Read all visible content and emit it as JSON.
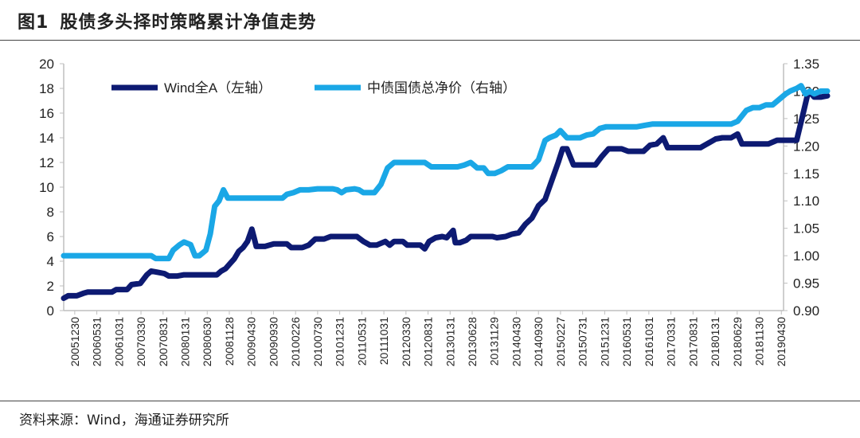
{
  "header": {
    "fig_label": "图1",
    "title": "股债多头择时策略累计净值走势"
  },
  "footer": {
    "source": "资料来源：Wind，海通证券研究所"
  },
  "colors": {
    "series_left": "#0d1a72",
    "series_right": "#1aa7e6",
    "axis": "#bfbfbf",
    "text": "#222222"
  },
  "chart_data": {
    "type": "line",
    "title": "",
    "xlabel": "",
    "x_tick_labels": [
      "20051230",
      "20060531",
      "20061031",
      "20070330",
      "20070831",
      "20080131",
      "20080630",
      "20081128",
      "20090430",
      "20090930",
      "20100226",
      "20100730",
      "20101231",
      "20110531",
      "20111031",
      "20120330",
      "20120831",
      "20130131",
      "20130628",
      "20131129",
      "20140430",
      "20140930",
      "20150227",
      "20150731",
      "20151231",
      "20160531",
      "20161031",
      "20170331",
      "20170831",
      "20180131",
      "20180629",
      "20181130",
      "20190430"
    ],
    "left_axis": {
      "range": [
        0,
        20
      ],
      "ticks": [
        0,
        2,
        4,
        6,
        8,
        10,
        12,
        14,
        16,
        18,
        20
      ]
    },
    "right_axis": {
      "range": [
        0.9,
        1.35
      ],
      "ticks": [
        "0.90",
        "0.95",
        "1.00",
        "1.05",
        "1.10",
        "1.15",
        "1.20",
        "1.25",
        "1.30",
        "1.35"
      ]
    },
    "legend": {
      "placement": "top-left"
    },
    "grid": false,
    "series": [
      {
        "name": "Wind全A（左轴）",
        "axis": "left",
        "points": [
          [
            0,
            1.0
          ],
          [
            0.2,
            1.2
          ],
          [
            0.6,
            1.2
          ],
          [
            0.9,
            1.4
          ],
          [
            1.1,
            1.5
          ],
          [
            1.5,
            1.5
          ],
          [
            2.2,
            1.5
          ],
          [
            2.4,
            1.7
          ],
          [
            2.9,
            1.7
          ],
          [
            3.1,
            2.1
          ],
          [
            3.5,
            2.2
          ],
          [
            3.8,
            2.9
          ],
          [
            4.0,
            3.2
          ],
          [
            4.3,
            3.1
          ],
          [
            4.6,
            3.0
          ],
          [
            4.8,
            2.8
          ],
          [
            5.2,
            2.8
          ],
          [
            5.5,
            2.9
          ],
          [
            6.0,
            2.9
          ],
          [
            6.4,
            2.9
          ],
          [
            6.8,
            2.9
          ],
          [
            7.0,
            2.9
          ],
          [
            7.2,
            3.2
          ],
          [
            7.4,
            3.4
          ],
          [
            7.6,
            3.8
          ],
          [
            7.8,
            4.2
          ],
          [
            8.0,
            4.8
          ],
          [
            8.2,
            5.1
          ],
          [
            8.4,
            5.6
          ],
          [
            8.6,
            6.6
          ],
          [
            8.7,
            5.9
          ],
          [
            8.8,
            5.2
          ],
          [
            9.2,
            5.2
          ],
          [
            9.6,
            5.4
          ],
          [
            10.2,
            5.4
          ],
          [
            10.4,
            5.1
          ],
          [
            10.9,
            5.1
          ],
          [
            11.2,
            5.3
          ],
          [
            11.5,
            5.8
          ],
          [
            11.9,
            5.8
          ],
          [
            12.2,
            6.0
          ],
          [
            12.6,
            6.0
          ],
          [
            13.4,
            6.0
          ],
          [
            13.7,
            5.6
          ],
          [
            14.0,
            5.3
          ],
          [
            14.3,
            5.3
          ],
          [
            14.7,
            5.6
          ],
          [
            14.9,
            5.3
          ],
          [
            15.1,
            5.6
          ],
          [
            15.5,
            5.6
          ],
          [
            15.7,
            5.3
          ],
          [
            16.3,
            5.3
          ],
          [
            16.5,
            5.0
          ],
          [
            16.7,
            5.6
          ],
          [
            17.0,
            5.9
          ],
          [
            17.3,
            6.0
          ],
          [
            17.5,
            5.9
          ],
          [
            17.8,
            6.5
          ],
          [
            17.9,
            5.5
          ],
          [
            18.1,
            5.5
          ],
          [
            18.4,
            5.7
          ],
          [
            18.6,
            6.0
          ],
          [
            19.0,
            6.0
          ],
          [
            19.6,
            6.0
          ],
          [
            19.8,
            5.9
          ],
          [
            20.2,
            6.0
          ],
          [
            20.5,
            6.2
          ],
          [
            20.8,
            6.3
          ],
          [
            21.1,
            7.0
          ],
          [
            21.4,
            7.5
          ],
          [
            21.7,
            8.5
          ],
          [
            22.0,
            9.0
          ],
          [
            22.2,
            10.0
          ],
          [
            22.4,
            11.0
          ],
          [
            22.6,
            12.0
          ],
          [
            22.8,
            13.1
          ],
          [
            23.0,
            13.1
          ],
          [
            23.3,
            11.8
          ],
          [
            23.6,
            11.8
          ],
          [
            24.0,
            11.8
          ],
          [
            24.3,
            11.8
          ],
          [
            24.6,
            12.5
          ],
          [
            24.9,
            13.1
          ],
          [
            25.2,
            13.1
          ],
          [
            25.5,
            13.1
          ],
          [
            25.8,
            12.9
          ],
          [
            26.2,
            12.9
          ],
          [
            26.5,
            12.9
          ],
          [
            26.8,
            13.4
          ],
          [
            27.1,
            13.5
          ],
          [
            27.4,
            14.0
          ],
          [
            27.6,
            13.2
          ],
          [
            27.9,
            13.2
          ],
          [
            28.2,
            13.2
          ],
          [
            28.5,
            13.2
          ],
          [
            28.8,
            13.2
          ],
          [
            29.1,
            13.2
          ],
          [
            29.5,
            13.6
          ],
          [
            29.8,
            13.9
          ],
          [
            30.1,
            14.0
          ],
          [
            30.5,
            14.0
          ],
          [
            30.8,
            14.3
          ],
          [
            31.0,
            13.5
          ],
          [
            31.4,
            13.5
          ],
          [
            31.8,
            13.5
          ],
          [
            32.2,
            13.5
          ],
          [
            32.6,
            13.8
          ],
          [
            33.0,
            13.8
          ],
          [
            33.3,
            13.8
          ],
          [
            33.5,
            13.8
          ],
          [
            33.8,
            16.0
          ],
          [
            34.0,
            17.5
          ],
          [
            34.1,
            17.7
          ],
          [
            34.3,
            17.3
          ],
          [
            34.6,
            17.3
          ],
          [
            34.9,
            17.4
          ]
        ]
      },
      {
        "name": "中债国债总净价（右轴）",
        "axis": "right",
        "points": [
          [
            0,
            1.0
          ],
          [
            1.0,
            1.0
          ],
          [
            2.0,
            1.0
          ],
          [
            3.0,
            1.0
          ],
          [
            4.0,
            1.0
          ],
          [
            4.2,
            0.995
          ],
          [
            4.5,
            0.995
          ],
          [
            4.8,
            0.995
          ],
          [
            5.0,
            1.01
          ],
          [
            5.3,
            1.02
          ],
          [
            5.5,
            1.025
          ],
          [
            5.8,
            1.02
          ],
          [
            6.0,
            1.0
          ],
          [
            6.2,
            1.0
          ],
          [
            6.5,
            1.01
          ],
          [
            6.7,
            1.04
          ],
          [
            6.9,
            1.09
          ],
          [
            7.1,
            1.1
          ],
          [
            7.3,
            1.12
          ],
          [
            7.5,
            1.105
          ],
          [
            7.7,
            1.105
          ],
          [
            8.0,
            1.105
          ],
          [
            9.0,
            1.105
          ],
          [
            10.0,
            1.105
          ],
          [
            10.2,
            1.112
          ],
          [
            10.5,
            1.115
          ],
          [
            10.8,
            1.12
          ],
          [
            11.2,
            1.12
          ],
          [
            11.6,
            1.122
          ],
          [
            12.3,
            1.122
          ],
          [
            12.5,
            1.12
          ],
          [
            12.7,
            1.115
          ],
          [
            12.9,
            1.12
          ],
          [
            13.3,
            1.122
          ],
          [
            13.5,
            1.12
          ],
          [
            13.7,
            1.115
          ],
          [
            14.2,
            1.115
          ],
          [
            14.5,
            1.13
          ],
          [
            14.8,
            1.16
          ],
          [
            15.1,
            1.17
          ],
          [
            15.5,
            1.17
          ],
          [
            16.0,
            1.17
          ],
          [
            16.5,
            1.17
          ],
          [
            16.8,
            1.162
          ],
          [
            17.0,
            1.162
          ],
          [
            17.5,
            1.162
          ],
          [
            18.0,
            1.162
          ],
          [
            18.3,
            1.165
          ],
          [
            18.6,
            1.17
          ],
          [
            18.9,
            1.16
          ],
          [
            19.2,
            1.16
          ],
          [
            19.4,
            1.15
          ],
          [
            19.7,
            1.15
          ],
          [
            20.0,
            1.155
          ],
          [
            20.3,
            1.162
          ],
          [
            20.6,
            1.162
          ],
          [
            21.0,
            1.162
          ],
          [
            21.4,
            1.162
          ],
          [
            21.7,
            1.175
          ],
          [
            22.0,
            1.21
          ],
          [
            22.2,
            1.215
          ],
          [
            22.5,
            1.22
          ],
          [
            22.7,
            1.228
          ],
          [
            23.0,
            1.215
          ],
          [
            23.3,
            1.215
          ],
          [
            23.6,
            1.215
          ],
          [
            23.9,
            1.22
          ],
          [
            24.2,
            1.222
          ],
          [
            24.5,
            1.232
          ],
          [
            24.8,
            1.235
          ],
          [
            25.2,
            1.235
          ],
          [
            25.8,
            1.235
          ],
          [
            26.2,
            1.235
          ],
          [
            26.6,
            1.238
          ],
          [
            26.9,
            1.24
          ],
          [
            27.3,
            1.24
          ],
          [
            27.8,
            1.24
          ],
          [
            28.3,
            1.24
          ],
          [
            29.0,
            1.24
          ],
          [
            29.5,
            1.24
          ],
          [
            30.0,
            1.24
          ],
          [
            30.5,
            1.24
          ],
          [
            30.8,
            1.245
          ],
          [
            31.0,
            1.255
          ],
          [
            31.2,
            1.265
          ],
          [
            31.5,
            1.27
          ],
          [
            31.8,
            1.27
          ],
          [
            32.1,
            1.275
          ],
          [
            32.4,
            1.275
          ],
          [
            32.7,
            1.285
          ],
          [
            33.0,
            1.295
          ],
          [
            33.2,
            1.3
          ],
          [
            33.5,
            1.305
          ],
          [
            33.7,
            1.31
          ],
          [
            33.9,
            1.295
          ],
          [
            34.1,
            1.3
          ],
          [
            34.3,
            1.295
          ],
          [
            34.6,
            1.3
          ],
          [
            34.9,
            1.3
          ]
        ]
      }
    ]
  }
}
